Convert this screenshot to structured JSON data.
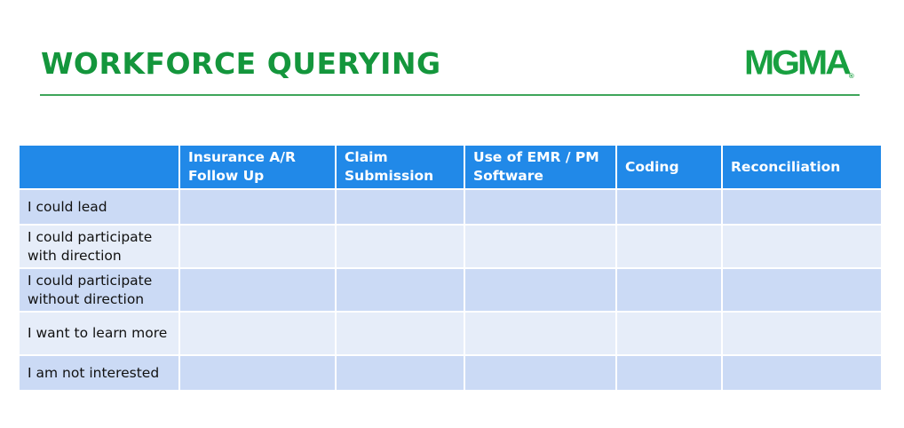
{
  "slide": {
    "title": "WORKFORCE QUERYING",
    "logo_text": "MGMA",
    "brand_color": "#14963c",
    "header_color": "#2189e8"
  },
  "table": {
    "columns": [
      "",
      "Insurance A/R Follow Up",
      "Claim Submission",
      "Use of EMR / PM Software",
      "Coding",
      "Reconciliation"
    ],
    "rows": [
      "I could lead",
      "I could participate with direction",
      "I could participate without direction",
      "I want to learn more",
      "I am not interested"
    ]
  }
}
